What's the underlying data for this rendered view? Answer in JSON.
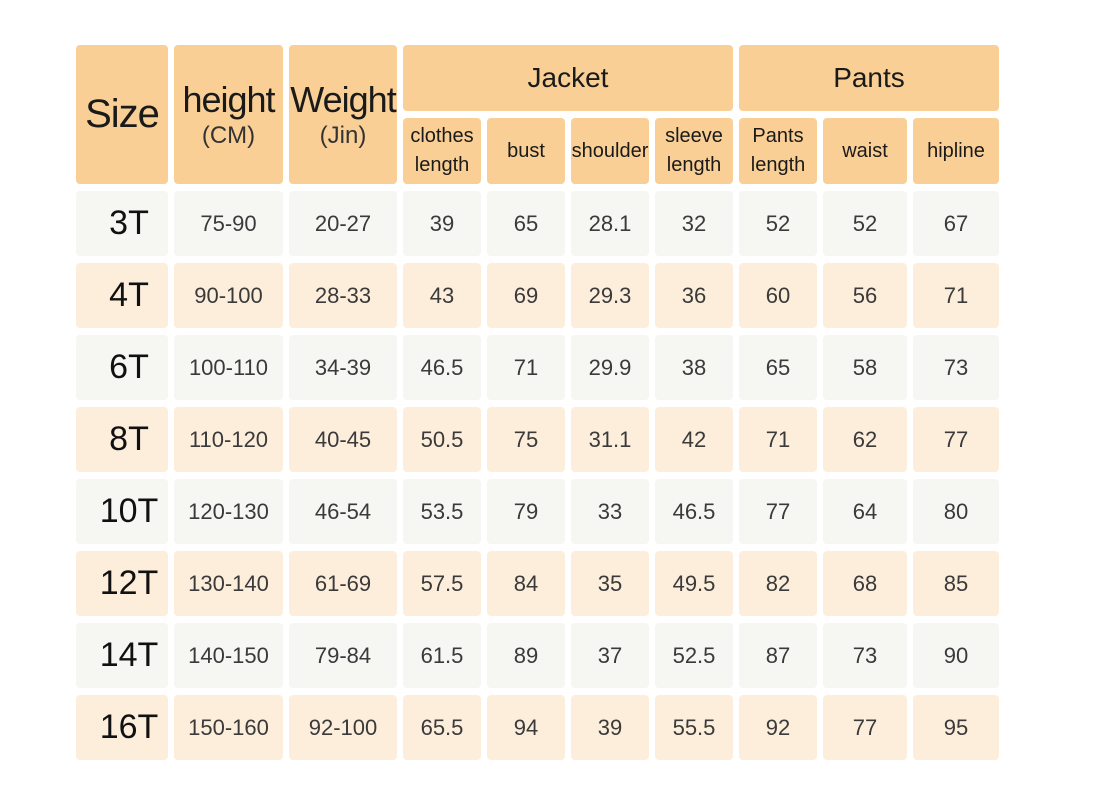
{
  "header": {
    "size": "Size",
    "height": {
      "title": "height",
      "unit": "(CM)"
    },
    "weight": {
      "title": "Weight",
      "unit": "(Jin)"
    },
    "jacket": "Jacket",
    "pants": "Pants",
    "sub": [
      [
        "clothes",
        "length"
      ],
      [
        "bust"
      ],
      [
        "shoulder"
      ],
      [
        "sleeve",
        "length"
      ],
      [
        "Pants",
        "length"
      ],
      [
        "waist"
      ],
      [
        "hipline"
      ]
    ]
  },
  "colors": {
    "header": "#f9cf95",
    "row_odd": "#f6f6f3",
    "row_even": "#fdeedc"
  },
  "rows": [
    [
      "3T",
      "75-90",
      "20-27",
      "39",
      "65",
      "28.1",
      "32",
      "52",
      "52",
      "67"
    ],
    [
      "4T",
      "90-100",
      "28-33",
      "43",
      "69",
      "29.3",
      "36",
      "60",
      "56",
      "71"
    ],
    [
      "6T",
      "100-110",
      "34-39",
      "46.5",
      "71",
      "29.9",
      "38",
      "65",
      "58",
      "73"
    ],
    [
      "8T",
      "110-120",
      "40-45",
      "50.5",
      "75",
      "31.1",
      "42",
      "71",
      "62",
      "77"
    ],
    [
      "10T",
      "120-130",
      "46-54",
      "53.5",
      "79",
      "33",
      "46.5",
      "77",
      "64",
      "80"
    ],
    [
      "12T",
      "130-140",
      "61-69",
      "57.5",
      "84",
      "35",
      "49.5",
      "82",
      "68",
      "85"
    ],
    [
      "14T",
      "140-150",
      "79-84",
      "61.5",
      "89",
      "37",
      "52.5",
      "87",
      "73",
      "90"
    ],
    [
      "16T",
      "150-160",
      "92-100",
      "65.5",
      "94",
      "39",
      "55.5",
      "92",
      "77",
      "95"
    ]
  ]
}
